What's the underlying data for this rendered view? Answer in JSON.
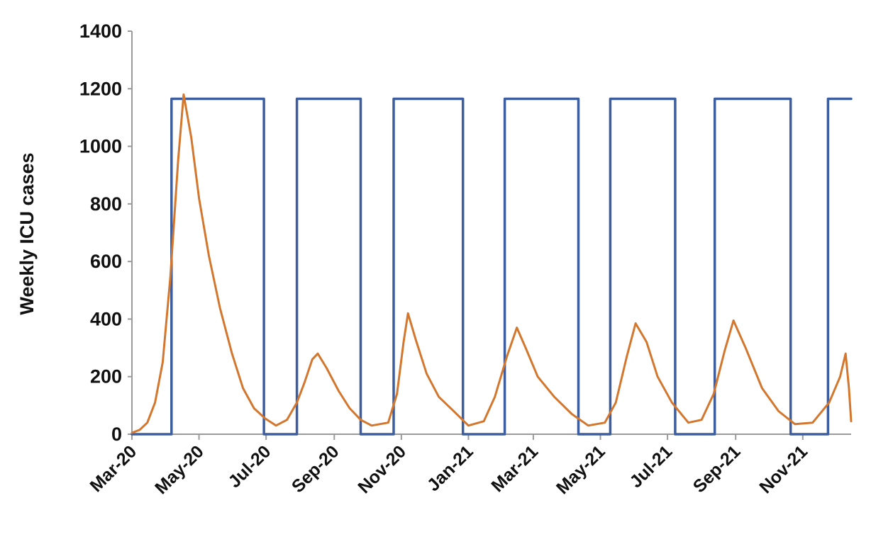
{
  "chart_data": {
    "type": "line",
    "title": "",
    "xlabel": "",
    "ylabel": "Weekly ICU cases",
    "ylim": [
      0,
      1400
    ],
    "yticks": [
      0,
      200,
      400,
      600,
      800,
      1000,
      1200,
      1400
    ],
    "xlim": [
      "2020-03-01",
      "2021-12-15"
    ],
    "x_tick_labels": [
      {
        "date": "2020-03-01",
        "label": "Mar-20"
      },
      {
        "date": "2020-05-01",
        "label": "May-20"
      },
      {
        "date": "2020-07-01",
        "label": "Jul-20"
      },
      {
        "date": "2020-09-01",
        "label": "Sep-20"
      },
      {
        "date": "2020-11-01",
        "label": "Nov-20"
      },
      {
        "date": "2021-01-01",
        "label": "Jan-21"
      },
      {
        "date": "2021-03-01",
        "label": "Mar-21"
      },
      {
        "date": "2021-05-01",
        "label": "May-21"
      },
      {
        "date": "2021-07-01",
        "label": "Jul-21"
      },
      {
        "date": "2021-09-01",
        "label": "Sep-21"
      },
      {
        "date": "2021-11-01",
        "label": "Nov-21"
      }
    ],
    "grid": false,
    "legend": "none",
    "series": [
      {
        "color": "#3d5e9e",
        "style": "step",
        "points": [
          [
            "2020-03-01",
            0
          ],
          [
            "2020-04-06",
            0
          ],
          [
            "2020-04-06",
            1165
          ],
          [
            "2020-06-29",
            1165
          ],
          [
            "2020-06-29",
            0
          ],
          [
            "2020-07-29",
            0
          ],
          [
            "2020-07-29",
            1165
          ],
          [
            "2020-09-25",
            1165
          ],
          [
            "2020-09-25",
            0
          ],
          [
            "2020-10-25",
            0
          ],
          [
            "2020-10-25",
            1165
          ],
          [
            "2020-12-27",
            1165
          ],
          [
            "2020-12-27",
            0
          ],
          [
            "2021-02-03",
            0
          ],
          [
            "2021-02-03",
            1165
          ],
          [
            "2021-04-11",
            1165
          ],
          [
            "2021-04-11",
            0
          ],
          [
            "2021-05-10",
            0
          ],
          [
            "2021-05-10",
            1165
          ],
          [
            "2021-07-08",
            1165
          ],
          [
            "2021-07-08",
            0
          ],
          [
            "2021-08-13",
            0
          ],
          [
            "2021-08-13",
            1165
          ],
          [
            "2021-10-21",
            1165
          ],
          [
            "2021-10-21",
            0
          ],
          [
            "2021-11-24",
            0
          ],
          [
            "2021-11-24",
            1165
          ],
          [
            "2021-12-15",
            1165
          ]
        ]
      },
      {
        "color": "#d4772e",
        "style": "line",
        "points": [
          [
            "2020-03-01",
            5
          ],
          [
            "2020-03-08",
            15
          ],
          [
            "2020-03-15",
            40
          ],
          [
            "2020-03-22",
            110
          ],
          [
            "2020-03-29",
            250
          ],
          [
            "2020-04-05",
            550
          ],
          [
            "2020-04-12",
            950
          ],
          [
            "2020-04-17",
            1180
          ],
          [
            "2020-04-24",
            1030
          ],
          [
            "2020-05-01",
            820
          ],
          [
            "2020-05-10",
            620
          ],
          [
            "2020-05-20",
            440
          ],
          [
            "2020-05-31",
            280
          ],
          [
            "2020-06-10",
            160
          ],
          [
            "2020-06-20",
            90
          ],
          [
            "2020-06-30",
            55
          ],
          [
            "2020-07-10",
            30
          ],
          [
            "2020-07-20",
            50
          ],
          [
            "2020-07-29",
            110
          ],
          [
            "2020-08-05",
            180
          ],
          [
            "2020-08-12",
            260
          ],
          [
            "2020-08-17",
            280
          ],
          [
            "2020-08-25",
            230
          ],
          [
            "2020-09-05",
            150
          ],
          [
            "2020-09-15",
            90
          ],
          [
            "2020-09-25",
            50
          ],
          [
            "2020-10-05",
            30
          ],
          [
            "2020-10-20",
            40
          ],
          [
            "2020-10-28",
            140
          ],
          [
            "2020-11-03",
            320
          ],
          [
            "2020-11-07",
            420
          ],
          [
            "2020-11-14",
            330
          ],
          [
            "2020-11-24",
            210
          ],
          [
            "2020-12-05",
            130
          ],
          [
            "2020-12-20",
            75
          ],
          [
            "2021-01-01",
            30
          ],
          [
            "2021-01-15",
            45
          ],
          [
            "2021-01-25",
            130
          ],
          [
            "2021-02-05",
            270
          ],
          [
            "2021-02-14",
            370
          ],
          [
            "2021-02-22",
            300
          ],
          [
            "2021-03-05",
            200
          ],
          [
            "2021-03-20",
            130
          ],
          [
            "2021-04-05",
            70
          ],
          [
            "2021-04-20",
            30
          ],
          [
            "2021-05-05",
            40
          ],
          [
            "2021-05-15",
            110
          ],
          [
            "2021-05-25",
            270
          ],
          [
            "2021-06-02",
            385
          ],
          [
            "2021-06-12",
            320
          ],
          [
            "2021-06-22",
            200
          ],
          [
            "2021-07-05",
            110
          ],
          [
            "2021-07-20",
            40
          ],
          [
            "2021-08-01",
            50
          ],
          [
            "2021-08-12",
            140
          ],
          [
            "2021-08-22",
            290
          ],
          [
            "2021-08-30",
            395
          ],
          [
            "2021-09-10",
            300
          ],
          [
            "2021-09-25",
            160
          ],
          [
            "2021-10-10",
            80
          ],
          [
            "2021-10-25",
            35
          ],
          [
            "2021-11-10",
            40
          ],
          [
            "2021-11-25",
            110
          ],
          [
            "2021-12-05",
            200
          ],
          [
            "2021-12-10",
            280
          ],
          [
            "2021-12-13",
            160
          ],
          [
            "2021-12-15",
            45
          ]
        ]
      }
    ]
  }
}
